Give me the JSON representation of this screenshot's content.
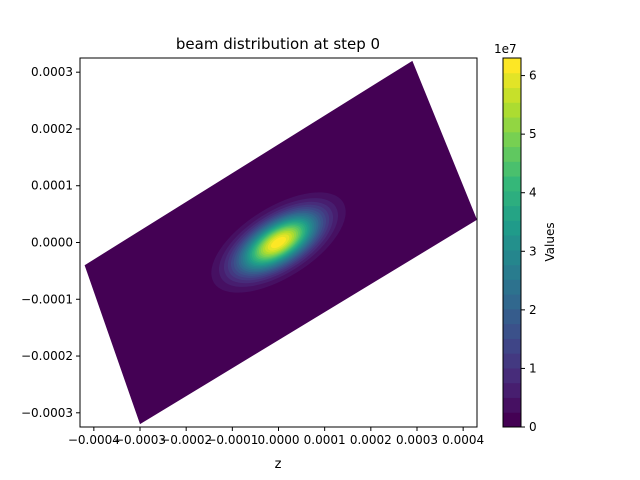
{
  "chart_data": {
    "type": "heatmap",
    "title": "beam distribution at step 0",
    "xlabel": "z",
    "ylabel": "",
    "xlim": [
      -0.00043,
      0.00043
    ],
    "ylim": [
      -0.000325,
      0.000325
    ],
    "x_ticks": [
      "−0.0004",
      "−0.0003",
      "−0.0002",
      "−0.0001",
      "0.0000",
      "0.0001",
      "0.0002",
      "0.0003",
      "0.0004"
    ],
    "x_tick_values": [
      -0.0004,
      -0.0003,
      -0.0002,
      -0.0001,
      0.0,
      0.0001,
      0.0002,
      0.0003,
      0.0004
    ],
    "y_ticks": [
      "−0.0003",
      "−0.0002",
      "−0.0001",
      "0.0000",
      "0.0001",
      "0.0002",
      "0.0003"
    ],
    "y_tick_values": [
      -0.0003,
      -0.0002,
      -0.0001,
      0.0,
      0.0001,
      0.0002,
      0.0003
    ],
    "grid": false,
    "colormap": "viridis",
    "colorbar": {
      "label": "Values",
      "multiplier": "1e7",
      "range": [
        0,
        6.3
      ],
      "levels": 25,
      "ticks": [
        "0",
        "1",
        "2",
        "3",
        "4",
        "5",
        "6"
      ],
      "tick_values": [
        0,
        1,
        2,
        3,
        4,
        5,
        6
      ]
    },
    "domain_region": {
      "shape": "rotated-rectangle",
      "corners": [
        [
          -0.00042,
          -4e-05
        ],
        [
          0.00029,
          0.00032
        ],
        [
          0.00043,
          4e-05
        ],
        [
          -0.0003,
          -0.00032
        ]
      ]
    },
    "peak": {
      "z": 0.0,
      "value": 6.3,
      "center_y": 0.0
    },
    "distribution": {
      "kind": "gaussian",
      "sigma_major": 6.5e-05,
      "sigma_minor": 3e-05,
      "orientation_deg": 32
    }
  }
}
